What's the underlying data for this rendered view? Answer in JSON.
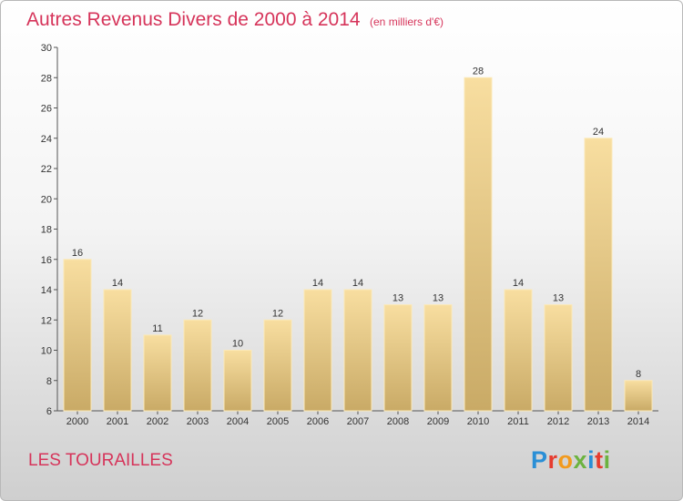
{
  "title": "Autres Revenus Divers de 2000 à 2014",
  "unit": "(en milliers d'€)",
  "location": "LES TOURAILLES",
  "logo": {
    "text": "Proxiti",
    "colors": [
      "#2a8fd6",
      "#e63c2f",
      "#f29a1d",
      "#6cb33f",
      "#2a8fd6",
      "#e63c2f",
      "#6cb33f"
    ]
  },
  "chart_data": {
    "type": "bar",
    "categories": [
      "2000",
      "2001",
      "2002",
      "2003",
      "2004",
      "2005",
      "2006",
      "2007",
      "2008",
      "2009",
      "2010",
      "2011",
      "2012",
      "2013",
      "2014"
    ],
    "values": [
      16,
      14,
      11,
      12,
      10,
      12,
      14,
      14,
      13,
      13,
      28,
      14,
      13,
      24,
      8
    ],
    "ylim": [
      6,
      30
    ],
    "yticks": [
      6,
      8,
      10,
      12,
      14,
      16,
      18,
      20,
      22,
      24,
      26,
      28,
      30
    ],
    "grid": false,
    "bar_color_top": "#f8dea0",
    "bar_color_bottom": "#c9aa66"
  }
}
